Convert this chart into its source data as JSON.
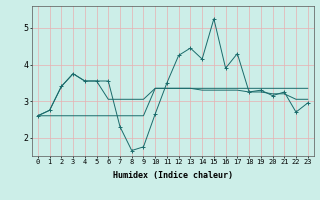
{
  "xlabel": "Humidex (Indice chaleur)",
  "bg_color": "#cceee8",
  "grid_color": "#e8b0b0",
  "line_color": "#1a6b6b",
  "xlim": [
    -0.5,
    23.5
  ],
  "ylim": [
    1.5,
    5.6
  ],
  "yticks": [
    2,
    3,
    4,
    5
  ],
  "xticks": [
    0,
    1,
    2,
    3,
    4,
    5,
    6,
    7,
    8,
    9,
    10,
    11,
    12,
    13,
    14,
    15,
    16,
    17,
    18,
    19,
    20,
    21,
    22,
    23
  ],
  "series1": {
    "x": [
      0,
      1,
      2,
      3,
      4,
      5,
      6,
      7,
      8,
      9,
      10,
      11,
      12,
      13,
      14,
      15,
      16,
      17,
      18,
      19,
      20,
      21,
      22,
      23
    ],
    "y": [
      2.6,
      2.75,
      3.4,
      3.75,
      3.55,
      3.55,
      3.55,
      2.3,
      1.65,
      1.75,
      2.65,
      3.5,
      4.25,
      4.45,
      4.15,
      5.25,
      3.9,
      4.3,
      3.25,
      3.3,
      3.15,
      3.25,
      2.7,
      2.95
    ]
  },
  "series2": {
    "x": [
      0,
      1,
      2,
      3,
      4,
      5,
      6,
      7,
      8,
      9,
      10,
      11,
      12,
      13,
      14,
      15,
      16,
      17,
      18,
      19,
      20,
      21,
      22,
      23
    ],
    "y": [
      2.6,
      2.75,
      3.4,
      3.75,
      3.55,
      3.55,
      3.05,
      3.05,
      3.05,
      3.05,
      3.35,
      3.35,
      3.35,
      3.35,
      3.3,
      3.3,
      3.3,
      3.3,
      3.25,
      3.25,
      3.2,
      3.2,
      3.05,
      3.05
    ]
  },
  "series3": {
    "x": [
      0,
      1,
      2,
      3,
      4,
      5,
      6,
      7,
      8,
      9,
      10,
      11,
      12,
      13,
      14,
      15,
      16,
      17,
      18,
      19,
      20,
      21,
      22,
      23
    ],
    "y": [
      2.6,
      2.6,
      2.6,
      2.6,
      2.6,
      2.6,
      2.6,
      2.6,
      2.6,
      2.6,
      3.35,
      3.35,
      3.35,
      3.35,
      3.35,
      3.35,
      3.35,
      3.35,
      3.35,
      3.35,
      3.35,
      3.35,
      3.35,
      3.35
    ]
  },
  "tick_fontsize": 5,
  "xlabel_fontsize": 6
}
